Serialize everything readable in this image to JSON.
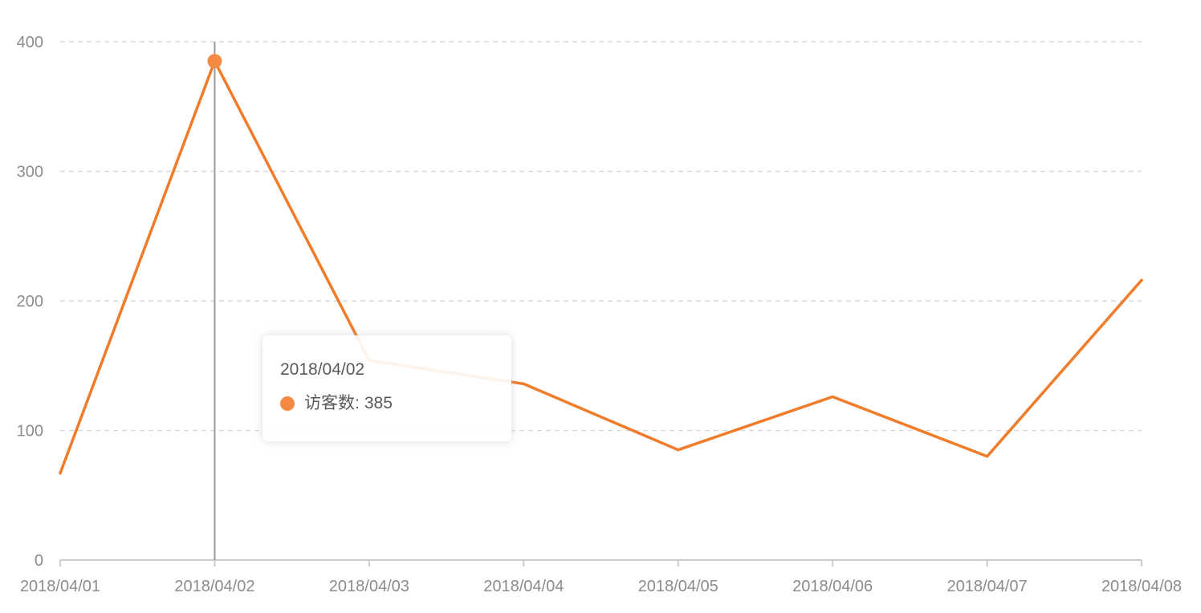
{
  "chart_data": {
    "type": "line",
    "title": "",
    "xlabel": "",
    "ylabel": "",
    "categories": [
      "2018/04/01",
      "2018/04/02",
      "2018/04/03",
      "2018/04/04",
      "2018/04/05",
      "2018/04/06",
      "2018/04/07",
      "2018/04/08"
    ],
    "series": [
      {
        "name": "访客数",
        "values": [
          67,
          385,
          154,
          136,
          85,
          126,
          80,
          216
        ],
        "color": "#f07c2a"
      }
    ],
    "ylim": [
      0,
      400
    ],
    "yticks": [
      "0",
      "100",
      "200",
      "300",
      "400"
    ],
    "grid": "horizontal-dashed",
    "legend": "none"
  },
  "tooltip": {
    "title": "2018/04/02",
    "series_name": "访客数",
    "separator": ":",
    "value": "385",
    "marker_color": "#f58b43"
  }
}
